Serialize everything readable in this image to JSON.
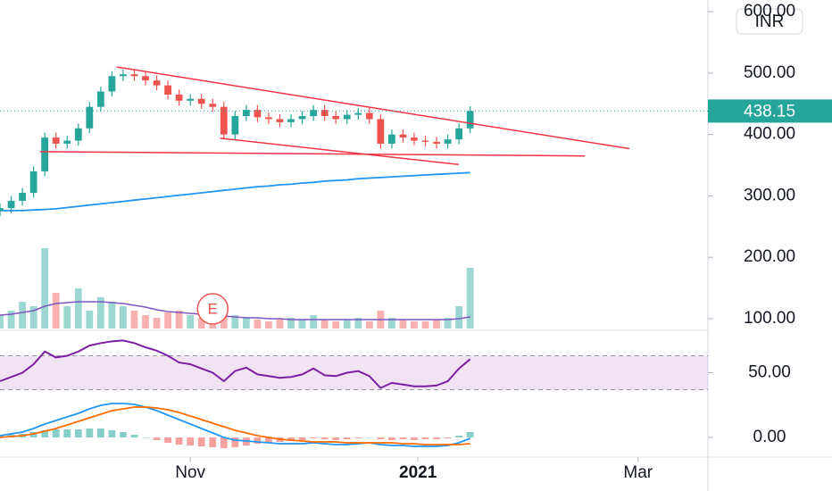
{
  "chart_data": {
    "type": "candlestick",
    "currency": "INR",
    "event_marker": {
      "label": "E",
      "x": 57
    },
    "x": [
      0,
      3,
      6,
      9,
      12,
      15,
      18,
      21,
      24,
      27,
      30,
      33,
      36,
      39,
      42,
      45,
      48,
      51,
      54,
      57,
      60,
      63,
      66,
      69,
      72,
      75,
      78,
      81,
      84,
      87,
      90,
      93,
      96,
      99,
      102,
      105,
      108,
      111,
      114,
      117,
      120,
      123,
      126
    ],
    "open": [
      275,
      280,
      292,
      305,
      340,
      395,
      385,
      390,
      410,
      445,
      470,
      495,
      498,
      495,
      488,
      480,
      465,
      455,
      458,
      450,
      445,
      400,
      430,
      440,
      428,
      425,
      420,
      425,
      430,
      440,
      430,
      425,
      432,
      435,
      425,
      385,
      400,
      395,
      390,
      388,
      385,
      392,
      410
    ],
    "high": [
      288,
      300,
      313,
      348,
      403,
      403,
      398,
      418,
      453,
      478,
      503,
      506,
      506,
      503,
      496,
      488,
      473,
      466,
      466,
      458,
      453,
      438,
      448,
      448,
      436,
      433,
      433,
      438,
      448,
      448,
      438,
      440,
      443,
      443,
      433,
      408,
      408,
      403,
      398,
      396,
      400,
      418,
      446
    ],
    "low": [
      267,
      272,
      284,
      297,
      332,
      377,
      377,
      382,
      402,
      437,
      462,
      487,
      487,
      480,
      472,
      457,
      447,
      447,
      442,
      437,
      392,
      392,
      422,
      420,
      417,
      412,
      412,
      417,
      422,
      422,
      417,
      417,
      424,
      417,
      377,
      377,
      387,
      382,
      380,
      377,
      377,
      384,
      402
    ],
    "close": [
      280,
      292,
      305,
      340,
      395,
      385,
      390,
      410,
      445,
      470,
      495,
      498,
      495,
      488,
      480,
      465,
      455,
      458,
      450,
      445,
      400,
      430,
      440,
      428,
      425,
      420,
      425,
      430,
      440,
      430,
      425,
      432,
      435,
      425,
      385,
      400,
      395,
      390,
      388,
      385,
      392,
      410,
      438.15
    ],
    "up_color": "#26a69a",
    "down_color": "#ef5350",
    "ma": {
      "color": "#2196f3",
      "values": [
        276,
        276,
        276,
        277,
        278,
        279,
        281,
        283,
        285,
        287,
        289,
        291,
        293,
        295,
        297,
        299,
        301,
        303,
        305,
        307,
        309,
        311,
        313,
        315,
        316,
        318,
        319,
        321,
        322,
        324,
        325,
        326,
        328,
        329,
        330,
        331,
        332,
        333,
        334,
        335,
        336,
        337,
        338
      ]
    },
    "trendlines": {
      "color": "#f23645",
      "lines": [
        {
          "x": [
            31.3,
            168.7
          ],
          "y": [
            510,
            377
          ]
        },
        {
          "x": [
            59,
            123
          ],
          "y": [
            394,
            351
          ]
        },
        {
          "x": [
            10.8,
            156.7
          ],
          "y": [
            372,
            365
          ]
        }
      ]
    },
    "xlim": [
      0,
      189
    ],
    "xticks": [
      {
        "value": 51,
        "label": "Nov"
      },
      {
        "value": 112,
        "label": "2021"
      },
      {
        "value": 171,
        "label": "Mar"
      }
    ],
    "ylim": [
      84,
      619
    ],
    "yticks": [
      {
        "value": 100,
        "label": "100.00"
      },
      {
        "value": 200,
        "label": "200.00"
      },
      {
        "value": 300,
        "label": "300.00"
      },
      {
        "value": 400,
        "label": "400.00"
      },
      {
        "value": 500,
        "label": "500.00"
      },
      {
        "value": 600,
        "label": "600.00"
      }
    ],
    "volume": {
      "ylim": [
        0,
        100
      ],
      "values": [
        15,
        20,
        30,
        25,
        90,
        40,
        25,
        45,
        20,
        35,
        30,
        25,
        20,
        15,
        12,
        18,
        20,
        15,
        12,
        10,
        30,
        15,
        12,
        10,
        8,
        10,
        12,
        10,
        15,
        10,
        8,
        10,
        12,
        8,
        20,
        12,
        10,
        8,
        8,
        10,
        12,
        25,
        68
      ],
      "ma_color": "#7e57c2",
      "ma": [
        15,
        16,
        18,
        20,
        25,
        28,
        29,
        30,
        30,
        30,
        29,
        28,
        26,
        24,
        21,
        19,
        18,
        17,
        16,
        15,
        14,
        13,
        12,
        12,
        11,
        11,
        10,
        10,
        10,
        10,
        10,
        10,
        10,
        10,
        10,
        10,
        10,
        10,
        10,
        10,
        10,
        11,
        13
      ]
    },
    "rsi": {
      "color": "#7b1fa2",
      "band": [
        30,
        70
      ],
      "band_color": "#e1bee7",
      "ylim": [
        0,
        100
      ],
      "yticks": [
        {
          "value": 50,
          "label": "50.00"
        }
      ],
      "values": [
        40,
        45,
        50,
        60,
        75,
        68,
        70,
        75,
        82,
        85,
        87,
        88,
        85,
        80,
        76,
        70,
        62,
        60,
        55,
        50,
        40,
        52,
        56,
        48,
        46,
        44,
        45,
        48,
        55,
        47,
        46,
        50,
        52,
        46,
        32,
        38,
        36,
        34,
        34,
        35,
        40,
        55,
        66
      ]
    },
    "macd": {
      "macd_color": "#2196f3",
      "signal_color": "#ff6d00",
      "ylim": [
        -2.2,
        5
      ],
      "yticks": [
        {
          "value": 0,
          "label": "0.00"
        }
      ],
      "macd": [
        0.2,
        0.4,
        0.6,
        1.0,
        1.5,
        1.9,
        2.3,
        2.7,
        3.2,
        3.6,
        3.8,
        3.8,
        3.7,
        3.4,
        3.0,
        2.5,
        2.0,
        1.5,
        1.0,
        0.5,
        0.0,
        -0.3,
        -0.4,
        -0.5,
        -0.6,
        -0.7,
        -0.7,
        -0.7,
        -0.6,
        -0.7,
        -0.8,
        -0.8,
        -0.7,
        -0.6,
        -0.8,
        -0.9,
        -0.9,
        -1.0,
        -1.0,
        -1.0,
        -0.9,
        -0.6,
        -0.1
      ],
      "signal": [
        0.0,
        0.1,
        0.2,
        0.4,
        0.7,
        1.0,
        1.4,
        1.8,
        2.2,
        2.6,
        3.0,
        3.2,
        3.4,
        3.4,
        3.3,
        3.1,
        2.8,
        2.4,
        2.0,
        1.6,
        1.2,
        0.8,
        0.5,
        0.2,
        0.0,
        -0.2,
        -0.3,
        -0.4,
        -0.5,
        -0.5,
        -0.5,
        -0.6,
        -0.6,
        -0.6,
        -0.6,
        -0.6,
        -0.7,
        -0.7,
        -0.8,
        -0.8,
        -0.8,
        -0.8,
        -0.7
      ],
      "histogram": [
        0.2,
        0.3,
        0.4,
        0.6,
        0.8,
        0.9,
        0.9,
        0.9,
        1.0,
        1.0,
        0.8,
        0.6,
        0.3,
        0.0,
        -0.3,
        -0.6,
        -0.8,
        -0.9,
        -1.0,
        -1.1,
        -1.2,
        -1.1,
        -0.9,
        -0.7,
        -0.6,
        -0.5,
        -0.4,
        -0.3,
        -0.1,
        -0.2,
        -0.3,
        -0.2,
        -0.1,
        0.0,
        -0.2,
        -0.3,
        -0.2,
        -0.3,
        -0.2,
        -0.2,
        -0.1,
        0.2,
        0.6
      ]
    }
  }
}
